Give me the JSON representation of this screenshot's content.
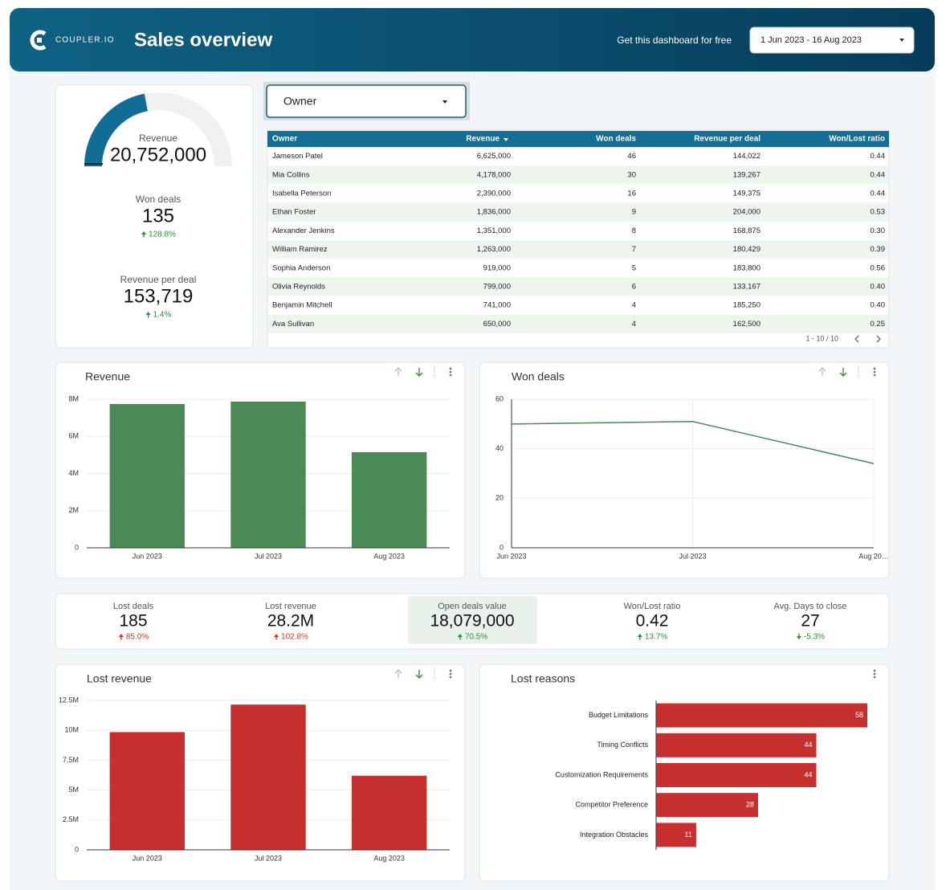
{
  "header": {
    "brand": "COUPLER.IO",
    "title": "Sales overview",
    "link": "Get this dashboard for free",
    "date_range": "1 Jun 2023 - 16 Aug 2023"
  },
  "scorecards_left": [
    {
      "label": "Revenue",
      "value": "20,752,000"
    },
    {
      "label": "Won deals",
      "value": "135",
      "change": "128.8%",
      "color": "#2e8b3e"
    },
    {
      "label": "Revenue per deal",
      "value": "153,719",
      "change": "1.4%",
      "color": "#2e8b3e"
    }
  ],
  "filter": "Owner",
  "table": {
    "columns": [
      "Owner",
      "Revenue",
      "Won deals",
      "Revenue per deal",
      "Won/Lost ratio"
    ],
    "rows": [
      [
        "Jameson Patel",
        "6,625,000",
        "46",
        "144,022",
        "0.44"
      ],
      [
        "Mia Collins",
        "4,178,000",
        "30",
        "139,267",
        "0.44"
      ],
      [
        "Isabella Peterson",
        "2,390,000",
        "16",
        "149,375",
        "0.44"
      ],
      [
        "Ethan Foster",
        "1,836,000",
        "9",
        "204,000",
        "0.53"
      ],
      [
        "Alexander Jenkins",
        "1,351,000",
        "8",
        "168,875",
        "0.30"
      ],
      [
        "William Ramirez",
        "1,263,000",
        "7",
        "180,429",
        "0.39"
      ],
      [
        "Sophia Anderson",
        "919,000",
        "5",
        "183,800",
        "0.56"
      ],
      [
        "Olivia Reynolds",
        "799,000",
        "6",
        "133,167",
        "0.40"
      ],
      [
        "Benjamin Mitchell",
        "741,000",
        "4",
        "185,250",
        "0.40"
      ],
      [
        "Ava Sullivan",
        "650,000",
        "4",
        "162,500",
        "0.25"
      ]
    ],
    "pagination": "1 - 10 / 10"
  },
  "scorecards": [
    {
      "label": "Lost deals",
      "value": "185",
      "change": "85.0%",
      "color": "#d93025"
    },
    {
      "label": "Lost revenue",
      "value": "28.2M",
      "change": "102.8%",
      "color": "#d93025"
    },
    {
      "label": "Open deals value",
      "value": "18,079,000",
      "change": "70.5%",
      "color": "#2e8b3e"
    },
    {
      "label": "Won/Lost ratio",
      "value": "0.42",
      "change": "13.7%",
      "color": "#2e8b3e"
    },
    {
      "label": "Avg. Days to close",
      "value": "27",
      "change": "-5.3%",
      "color": "#2e8b3e"
    }
  ],
  "chart_data": [
    {
      "type": "bar",
      "title": "Revenue",
      "categories": [
        "Jun 2023",
        "Jul 2023",
        "Aug 2023"
      ],
      "values": [
        7740000,
        7870000,
        5150000
      ],
      "color": "#4b8a57",
      "ylim": [
        0,
        8000000
      ],
      "yticks": [
        0,
        {
          "value": 2000000,
          "label": "2M"
        },
        {
          "value": 4000000,
          "label": "4M"
        },
        {
          "value": 6000000,
          "label": "6M"
        },
        {
          "value": 8000000,
          "label": "8M"
        }
      ],
      "grid": true
    },
    {
      "type": "line",
      "title": "Won deals",
      "categories": [
        "Jun 2023",
        "Jul 2023",
        "Aug 20…"
      ],
      "values": [
        50,
        51,
        34
      ],
      "color": "#4b8a57",
      "ylim": [
        0,
        60
      ],
      "yticks": [
        0,
        20,
        40,
        60
      ],
      "grid": true
    },
    {
      "type": "bar",
      "title": "Lost revenue",
      "categories": [
        "Jun 2023",
        "Jul 2023",
        "Aug 2023"
      ],
      "values": [
        9850000,
        12150000,
        6200000
      ],
      "color": "#c7302e",
      "ylim": [
        0,
        12500000
      ],
      "yticks": [
        0,
        {
          "value": 2500000,
          "label": "2.5M"
        },
        {
          "value": 5000000,
          "label": "5M"
        },
        {
          "value": 7500000,
          "label": "7.5M"
        },
        {
          "value": 10000000,
          "label": "10M"
        },
        {
          "value": 12500000,
          "label": "12.5M"
        }
      ],
      "grid": true
    },
    {
      "type": "hbar",
      "title": "Lost reasons",
      "categories": [
        "Budget Limitations",
        "Timing Conflicts",
        "Customization Requirements",
        "Competitor Preference",
        "Integration Obstacles"
      ],
      "values": [
        58,
        44,
        44,
        28,
        11
      ],
      "color": "#c7302e",
      "data_labels": true
    }
  ]
}
